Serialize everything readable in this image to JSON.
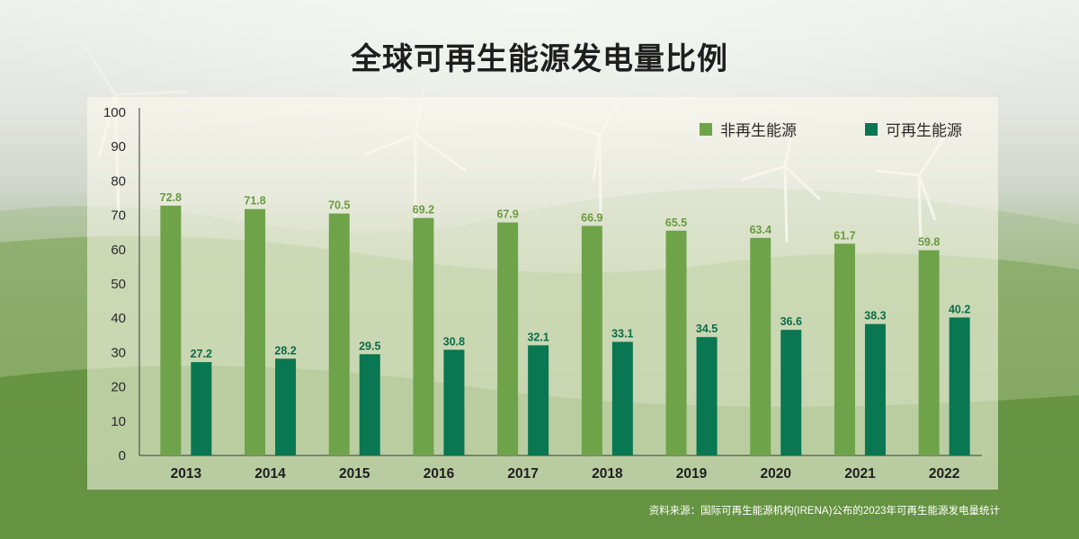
{
  "chart_data": {
    "type": "bar",
    "title": "全球可再生能源发电量比例",
    "categories": [
      "2013",
      "2014",
      "2015",
      "2016",
      "2017",
      "2018",
      "2019",
      "2020",
      "2021",
      "2022"
    ],
    "series": [
      {
        "name": "非再生能源",
        "values": [
          72.8,
          71.8,
          70.5,
          69.2,
          67.9,
          66.9,
          65.5,
          63.4,
          61.7,
          59.8
        ]
      },
      {
        "name": "可再生能源",
        "values": [
          27.2,
          28.2,
          29.5,
          30.8,
          32.1,
          33.1,
          34.5,
          36.6,
          38.3,
          40.2
        ]
      }
    ],
    "ylim": [
      0,
      100
    ],
    "yticks": [
      0,
      10,
      20,
      30,
      40,
      50,
      60,
      70,
      80,
      90,
      100
    ],
    "grid": false,
    "legend": "top-right",
    "colors": {
      "non_renewable": "#6ea34a",
      "renewable": "#087752",
      "label_non_renewable": "#6a9a3e",
      "label_renewable": "#0b6b48"
    },
    "source": "资料来源：国际可再生能源机构(IRENA)公布的2023年可再生能源发电量统计"
  }
}
